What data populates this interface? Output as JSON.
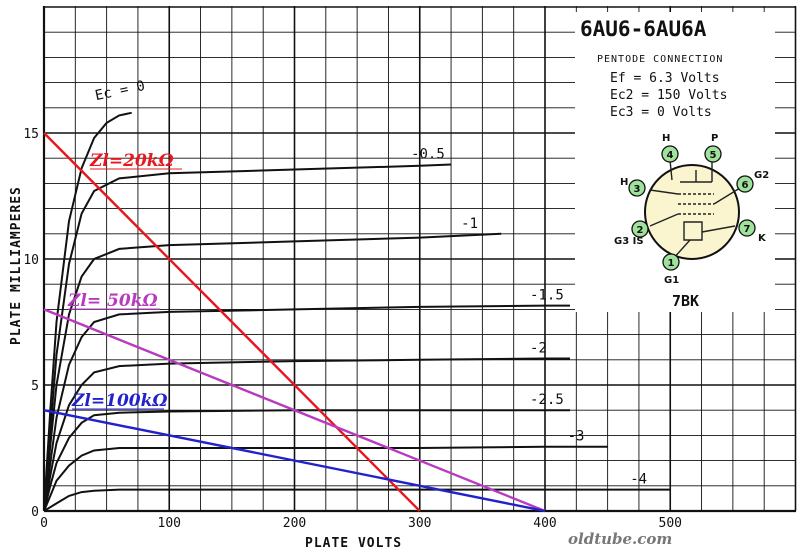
{
  "chart_data": {
    "type": "line",
    "title": "6AU6-6AU6A",
    "subtitle": "PENTODE CONNECTION",
    "xlabel": "PLATE VOLTS",
    "ylabel": "PLATE MILLIAMPERES",
    "xlim": [
      0,
      600
    ],
    "ylim": [
      0,
      20
    ],
    "x_ticks": [
      "0",
      "100",
      "200",
      "300",
      "400",
      "500"
    ],
    "y_ticks": [
      "0",
      "5",
      "10",
      "15"
    ],
    "grid": true,
    "conditions": [
      "Ef = 6.3 Volts",
      "Ec2 = 150 Volts",
      "Ec3 = 0 Volts"
    ],
    "series": [
      {
        "name": "Ec = 0",
        "points": [
          [
            0,
            0
          ],
          [
            5,
            4
          ],
          [
            10,
            7.5
          ],
          [
            20,
            11.5
          ],
          [
            30,
            13.6
          ],
          [
            40,
            14.8
          ],
          [
            50,
            15.4
          ],
          [
            60,
            15.7
          ],
          [
            70,
            15.8
          ]
        ]
      },
      {
        "name": "-0.5",
        "points": [
          [
            0,
            0
          ],
          [
            5,
            3.2
          ],
          [
            10,
            6.2
          ],
          [
            20,
            9.8
          ],
          [
            30,
            11.8
          ],
          [
            40,
            12.7
          ],
          [
            60,
            13.2
          ],
          [
            100,
            13.4
          ],
          [
            200,
            13.55
          ],
          [
            300,
            13.7
          ],
          [
            325,
            13.75
          ]
        ]
      },
      {
        "name": "-1",
        "points": [
          [
            0,
            0
          ],
          [
            5,
            2.6
          ],
          [
            10,
            5
          ],
          [
            20,
            7.8
          ],
          [
            30,
            9.3
          ],
          [
            40,
            10
          ],
          [
            60,
            10.4
          ],
          [
            100,
            10.55
          ],
          [
            200,
            10.7
          ],
          [
            300,
            10.85
          ],
          [
            365,
            11
          ]
        ]
      },
      {
        "name": "-1.5",
        "points": [
          [
            0,
            0
          ],
          [
            5,
            1.9
          ],
          [
            10,
            3.7
          ],
          [
            20,
            5.8
          ],
          [
            30,
            6.9
          ],
          [
            40,
            7.5
          ],
          [
            60,
            7.8
          ],
          [
            100,
            7.9
          ],
          [
            200,
            8.0
          ],
          [
            300,
            8.1
          ],
          [
            400,
            8.15
          ],
          [
            420,
            8.15
          ]
        ]
      },
      {
        "name": "-2",
        "points": [
          [
            0,
            0
          ],
          [
            5,
            1.4
          ],
          [
            10,
            2.7
          ],
          [
            20,
            4.2
          ],
          [
            30,
            5
          ],
          [
            40,
            5.5
          ],
          [
            60,
            5.75
          ],
          [
            100,
            5.85
          ],
          [
            200,
            5.95
          ],
          [
            300,
            6
          ],
          [
            400,
            6.05
          ],
          [
            420,
            6.05
          ]
        ]
      },
      {
        "name": "-2.5",
        "points": [
          [
            0,
            0
          ],
          [
            5,
            1
          ],
          [
            10,
            1.9
          ],
          [
            20,
            2.9
          ],
          [
            30,
            3.5
          ],
          [
            40,
            3.8
          ],
          [
            60,
            3.9
          ],
          [
            100,
            3.95
          ],
          [
            200,
            4.0
          ],
          [
            300,
            4.0
          ],
          [
            400,
            4.0
          ],
          [
            420,
            4.0
          ]
        ]
      },
      {
        "name": "-3",
        "points": [
          [
            0,
            0
          ],
          [
            5,
            0.6
          ],
          [
            10,
            1.2
          ],
          [
            20,
            1.8
          ],
          [
            30,
            2.2
          ],
          [
            40,
            2.4
          ],
          [
            60,
            2.5
          ],
          [
            100,
            2.5
          ],
          [
            200,
            2.5
          ],
          [
            300,
            2.5
          ],
          [
            400,
            2.55
          ],
          [
            450,
            2.55
          ]
        ]
      },
      {
        "name": "-4",
        "points": [
          [
            0,
            0
          ],
          [
            10,
            0.3
          ],
          [
            20,
            0.6
          ],
          [
            30,
            0.75
          ],
          [
            40,
            0.8
          ],
          [
            60,
            0.85
          ],
          [
            200,
            0.85
          ],
          [
            400,
            0.85
          ],
          [
            500,
            0.85
          ]
        ]
      }
    ],
    "load_lines": [
      {
        "name": "Zl=20kΩ",
        "color": "#e8171e",
        "points": [
          [
            0,
            15
          ],
          [
            300,
            0
          ]
        ]
      },
      {
        "name": "Zl= 50kΩ",
        "color": "#b83bbf",
        "points": [
          [
            0,
            8
          ],
          [
            400,
            0
          ]
        ]
      },
      {
        "name": "Zl=100kΩ",
        "color": "#2222cc",
        "points": [
          [
            0,
            4
          ],
          [
            400,
            0
          ]
        ]
      }
    ],
    "base_diagram": {
      "code": "7BK",
      "pins": [
        {
          "num": "1",
          "name": "G1"
        },
        {
          "num": "2",
          "name": "G3 IS"
        },
        {
          "num": "3",
          "name": "H"
        },
        {
          "num": "4",
          "name": "H"
        },
        {
          "num": "5",
          "name": "P"
        },
        {
          "num": "6",
          "name": "G2"
        },
        {
          "num": "7",
          "name": "K"
        }
      ]
    },
    "watermark": "oldtube.com"
  }
}
